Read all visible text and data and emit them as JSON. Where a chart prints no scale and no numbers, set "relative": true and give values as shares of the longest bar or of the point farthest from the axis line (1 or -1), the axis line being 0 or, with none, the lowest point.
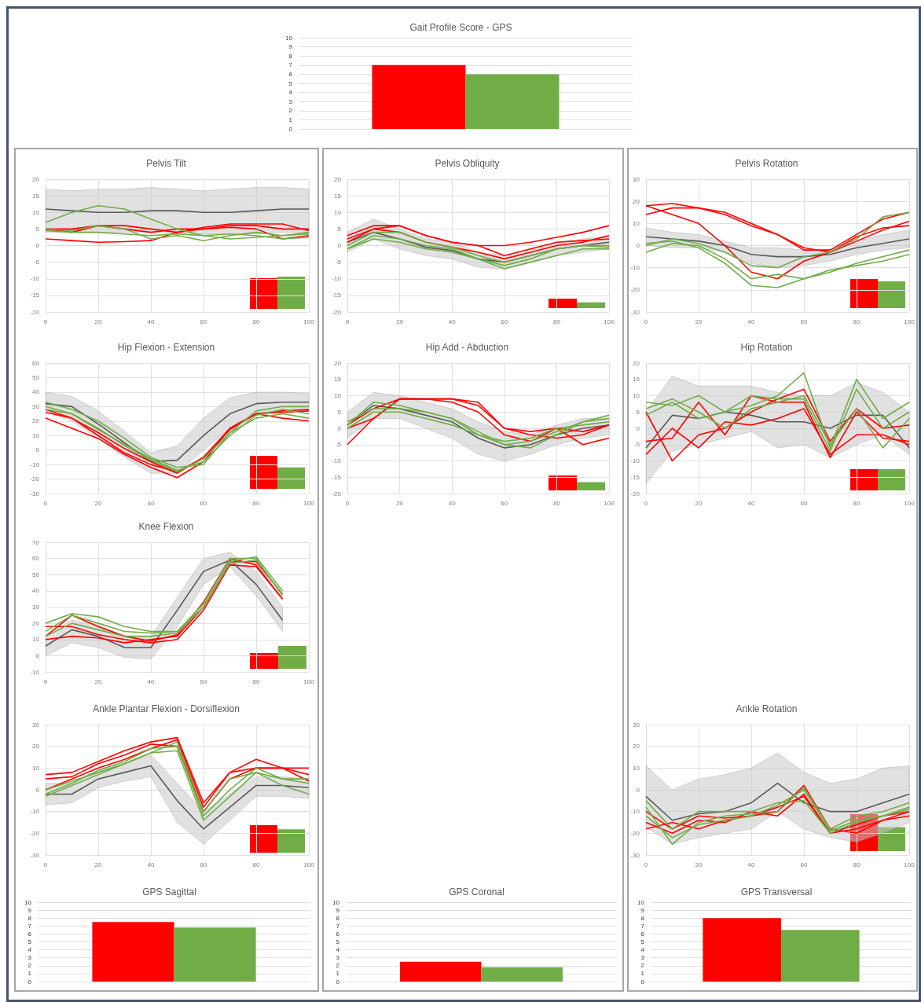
{
  "chart_data": [
    {
      "type": "bar",
      "title": "Gait Profile Score - GPS",
      "categories": [
        null
      ],
      "ylim": [
        0,
        10
      ],
      "yticks": [
        0,
        1,
        2,
        3,
        4,
        5,
        6,
        7,
        8,
        9,
        10
      ],
      "grid": "y",
      "series": [
        {
          "color": "#ff0000",
          "values": [
            7
          ]
        },
        {
          "color": "#70ad47",
          "values": [
            6
          ]
        }
      ]
    },
    {
      "type": "line",
      "title": "Pelvis Tilt",
      "x": [
        0,
        10,
        20,
        30,
        40,
        50,
        60,
        70,
        80,
        90,
        100
      ],
      "xlim": [
        0,
        100
      ],
      "xticks": [
        0,
        20,
        40,
        60,
        80,
        100
      ],
      "ylim": [
        -20,
        20
      ],
      "yticks": [
        -20,
        -15,
        -10,
        -5,
        0,
        5,
        10,
        15,
        20
      ],
      "grid": true,
      "series": [
        {
          "color": "#595959",
          "values": [
            11,
            10.5,
            10,
            10,
            10.5,
            10.5,
            10,
            10,
            10.5,
            11,
            11
          ],
          "lower": [
            4,
            4,
            4,
            4,
            4,
            3.5,
            3.5,
            3.5,
            3.5,
            4,
            4
          ],
          "upper": [
            17,
            16.5,
            17,
            17,
            17.5,
            17,
            16.5,
            17,
            17.5,
            17.5,
            17
          ]
        },
        {
          "color": "#ff0000",
          "values": [
            2,
            1.5,
            1,
            1.2,
            1.5,
            4,
            5,
            6,
            6,
            5,
            5
          ]
        },
        {
          "color": "#ff0000",
          "values": [
            5,
            5,
            6,
            6,
            5,
            4,
            5.5,
            6.5,
            6.5,
            6.5,
            4.5
          ]
        },
        {
          "color": "#ff0000",
          "values": [
            5,
            4,
            6,
            5,
            4,
            5,
            5,
            5.5,
            5,
            2,
            3
          ]
        },
        {
          "color": "#70ad47",
          "values": [
            7,
            10,
            12,
            11,
            8,
            5,
            3,
            2,
            2.5,
            3,
            4
          ]
        },
        {
          "color": "#70ad47",
          "values": [
            5,
            4.5,
            6,
            5,
            2,
            3,
            1.5,
            3,
            4,
            3,
            3.5
          ]
        },
        {
          "color": "#70ad47",
          "values": [
            4.5,
            4,
            4,
            3.5,
            3,
            3.5,
            3,
            3.5,
            3,
            2,
            2.5
          ]
        }
      ]
    },
    {
      "type": "bar",
      "relative": true,
      "categories": [
        null
      ],
      "series": [
        {
          "color": "#ff0000",
          "values": [
            0.95
          ]
        },
        {
          "color": "#70ad47",
          "values": [
            1
          ]
        }
      ]
    },
    {
      "type": "line",
      "title": "Pelvis Obliquity",
      "x": [
        0,
        10,
        20,
        30,
        40,
        50,
        60,
        70,
        80,
        90,
        100
      ],
      "xlim": [
        0,
        100
      ],
      "xticks": [
        0,
        20,
        40,
        60,
        80,
        100
      ],
      "ylim": [
        -20,
        20
      ],
      "yticks": [
        -20,
        -15,
        -10,
        -5,
        0,
        5,
        10,
        15,
        20
      ],
      "grid": true,
      "series": [
        {
          "color": "#595959",
          "values": [
            1,
            4,
            2,
            -0.5,
            -1.5,
            -4,
            -5,
            -3,
            -1,
            0,
            1
          ],
          "lower": [
            -2,
            2,
            -1,
            -3,
            -4,
            -6.5,
            -7,
            -5,
            -3,
            -2,
            -1
          ],
          "upper": [
            4,
            8,
            5,
            2,
            1,
            -2,
            -3,
            -1,
            1,
            2,
            3
          ]
        },
        {
          "color": "#ff0000",
          "values": [
            3,
            6,
            6,
            3,
            1,
            0,
            0,
            1,
            2.5,
            4,
            6
          ]
        },
        {
          "color": "#ff0000",
          "values": [
            2,
            5,
            6,
            3,
            1,
            0,
            -3,
            -1,
            1,
            1.5,
            2
          ]
        },
        {
          "color": "#ff0000",
          "values": [
            1,
            5,
            4,
            1,
            -0.5,
            -2,
            -4,
            -2,
            0,
            1,
            3
          ]
        },
        {
          "color": "#70ad47",
          "values": [
            -1,
            3,
            2,
            0,
            -1,
            -4,
            -6,
            -4,
            -1,
            0,
            0
          ]
        },
        {
          "color": "#70ad47",
          "values": [
            0,
            4,
            4,
            1,
            -0.5,
            -3,
            -5,
            -3,
            -1,
            0,
            -0.5
          ]
        },
        {
          "color": "#70ad47",
          "values": [
            -1,
            2,
            1,
            -1,
            -2,
            -4,
            -7,
            -5,
            -3,
            -1,
            -1
          ]
        }
      ]
    },
    {
      "type": "bar",
      "relative": true,
      "categories": [
        null
      ],
      "series": [
        {
          "color": "#ff0000",
          "values": [
            1
          ]
        },
        {
          "color": "#70ad47",
          "values": [
            0.6
          ]
        }
      ]
    },
    {
      "type": "line",
      "title": "Pelvis Rotation",
      "x": [
        0,
        10,
        20,
        30,
        40,
        50,
        60,
        70,
        80,
        90,
        100
      ],
      "xlim": [
        0,
        100
      ],
      "xticks": [
        0,
        20,
        40,
        60,
        80,
        100
      ],
      "ylim": [
        -30,
        30
      ],
      "yticks": [
        -30,
        -20,
        -10,
        0,
        10,
        20,
        30
      ],
      "grid": true,
      "series": [
        {
          "color": "#595959",
          "values": [
            4,
            3,
            2,
            0,
            -4,
            -5,
            -5,
            -4,
            -1,
            1,
            3
          ],
          "lower": [
            0,
            -1,
            -1,
            -3,
            -8,
            -10,
            -9,
            -7,
            -4,
            -2,
            -1
          ],
          "upper": [
            8,
            6,
            5,
            2,
            -1,
            -1,
            -2,
            -2,
            2,
            5,
            7
          ]
        },
        {
          "color": "#ff0000",
          "values": [
            18,
            19,
            17,
            15,
            10,
            5,
            -2,
            -2,
            5,
            12,
            15
          ]
        },
        {
          "color": "#ff0000",
          "values": [
            14,
            17,
            17,
            14,
            9,
            5,
            -1,
            -3,
            2,
            7,
            11
          ]
        },
        {
          "color": "#ff0000",
          "values": [
            18,
            14,
            10,
            0,
            -12,
            -15,
            -7,
            -3,
            4,
            8,
            9
          ]
        },
        {
          "color": "#70ad47",
          "values": [
            0,
            3,
            1,
            -3,
            -9,
            -10,
            -5,
            -3,
            3,
            13,
            15
          ]
        },
        {
          "color": "#70ad47",
          "values": [
            -3,
            1,
            0,
            -6,
            -15,
            -13,
            -15,
            -12,
            -8,
            -5,
            -2
          ]
        },
        {
          "color": "#70ad47",
          "values": [
            1,
            2,
            -1,
            -8,
            -18,
            -19,
            -15,
            -11,
            -9,
            -7,
            -4
          ]
        }
      ]
    },
    {
      "type": "bar",
      "relative": true,
      "categories": [
        null
      ],
      "series": [
        {
          "color": "#ff0000",
          "values": [
            1
          ]
        },
        {
          "color": "#70ad47",
          "values": [
            0.92
          ]
        }
      ]
    },
    {
      "type": "line",
      "title": "Hip Flexion - Extension",
      "x": [
        0,
        10,
        20,
        30,
        40,
        50,
        60,
        70,
        80,
        90,
        100
      ],
      "xlim": [
        0,
        100
      ],
      "xticks": [
        0,
        20,
        40,
        60,
        80,
        100
      ],
      "ylim": [
        -30,
        60
      ],
      "yticks": [
        -30,
        -20,
        -10,
        0,
        10,
        20,
        30,
        40,
        50,
        60
      ],
      "grid": true,
      "series": [
        {
          "color": "#595959",
          "values": [
            32,
            30,
            18,
            5,
            -8,
            -7,
            10,
            25,
            32,
            33,
            33
          ],
          "lower": [
            27,
            20,
            8,
            -5,
            -16,
            -16,
            0,
            15,
            25,
            27,
            27
          ],
          "upper": [
            40,
            37,
            27,
            13,
            -2,
            3,
            22,
            36,
            40,
            40,
            39
          ]
        },
        {
          "color": "#ff0000",
          "values": [
            22,
            15,
            8,
            -3,
            -12,
            -19,
            -8,
            15,
            25,
            22,
            20
          ]
        },
        {
          "color": "#ff0000",
          "values": [
            26,
            22,
            10,
            -2,
            -10,
            -15,
            -5,
            15,
            25,
            27,
            28
          ]
        },
        {
          "color": "#ff0000",
          "values": [
            28,
            22,
            12,
            1,
            -8,
            -16,
            -5,
            14,
            25,
            26,
            27
          ]
        },
        {
          "color": "#70ad47",
          "values": [
            33,
            28,
            20,
            8,
            -5,
            -12,
            -10,
            12,
            27,
            30,
            30
          ]
        },
        {
          "color": "#70ad47",
          "values": [
            30,
            25,
            14,
            4,
            -6,
            -14,
            -8,
            10,
            24,
            28,
            25
          ]
        },
        {
          "color": "#70ad47",
          "values": [
            28,
            25,
            15,
            3,
            -7,
            -15,
            -6,
            12,
            22,
            25,
            22
          ]
        }
      ]
    },
    {
      "type": "bar",
      "relative": true,
      "categories": [
        null
      ],
      "series": [
        {
          "color": "#ff0000",
          "values": [
            1
          ]
        },
        {
          "color": "#70ad47",
          "values": [
            0.65
          ]
        }
      ]
    },
    {
      "type": "line",
      "title": "Hip Add - Abduction",
      "x": [
        0,
        10,
        20,
        30,
        40,
        50,
        60,
        70,
        80,
        90,
        100
      ],
      "xlim": [
        0,
        100
      ],
      "xticks": [
        0,
        20,
        40,
        60,
        80,
        100
      ],
      "ylim": [
        -20,
        20
      ],
      "yticks": [
        -20,
        -15,
        -10,
        -5,
        0,
        5,
        10,
        15,
        20
      ],
      "grid": true,
      "series": [
        {
          "color": "#595959",
          "values": [
            1,
            7,
            6,
            4,
            2,
            -3,
            -6,
            -5,
            -2,
            0,
            1
          ],
          "lower": [
            -3,
            3,
            3,
            0,
            -3,
            -8,
            -10,
            -8,
            -5,
            -3,
            -2
          ],
          "upper": [
            5,
            11,
            10,
            8,
            6,
            2,
            -1,
            -2,
            1,
            3,
            3
          ]
        },
        {
          "color": "#ff0000",
          "values": [
            -5,
            3,
            9,
            9,
            9,
            7,
            0,
            -2,
            -3,
            -2,
            1
          ]
        },
        {
          "color": "#ff0000",
          "values": [
            1,
            6,
            9,
            9,
            9,
            8,
            0,
            -1,
            0,
            -1,
            1
          ]
        },
        {
          "color": "#ff0000",
          "values": [
            0,
            3,
            9,
            9,
            8,
            5,
            -2,
            -4,
            0,
            -5,
            -3
          ]
        },
        {
          "color": "#70ad47",
          "values": [
            1,
            8,
            7,
            5,
            3,
            -1,
            -5,
            -4,
            -1,
            2,
            3
          ]
        },
        {
          "color": "#70ad47",
          "values": [
            2,
            6,
            6,
            5,
            3,
            -2,
            -4,
            -3,
            0,
            1,
            2
          ]
        },
        {
          "color": "#70ad47",
          "values": [
            0,
            5,
            5,
            3,
            1,
            -2,
            -5,
            -6,
            -2,
            2,
            4
          ]
        }
      ]
    },
    {
      "type": "bar",
      "relative": true,
      "categories": [
        null
      ],
      "series": [
        {
          "color": "#ff0000",
          "values": [
            1
          ]
        },
        {
          "color": "#70ad47",
          "values": [
            0.55
          ]
        }
      ]
    },
    {
      "type": "line",
      "title": "Hip Rotation",
      "x": [
        0,
        10,
        20,
        30,
        40,
        50,
        60,
        70,
        80,
        90,
        100
      ],
      "xlim": [
        0,
        100
      ],
      "xticks": [
        0,
        20,
        40,
        60,
        80,
        100
      ],
      "ylim": [
        -20,
        20
      ],
      "yticks": [
        -20,
        -15,
        -10,
        -5,
        0,
        5,
        10,
        15,
        20
      ],
      "grid": true,
      "series": [
        {
          "color": "#595959",
          "values": [
            -6,
            4,
            3,
            5,
            4,
            2,
            2,
            0,
            4,
            4,
            -6
          ],
          "lower": [
            -17,
            -7,
            -5,
            -3,
            -1,
            -6,
            -5,
            -9,
            -5,
            -2,
            -8
          ],
          "upper": [
            5,
            16,
            13,
            13,
            13,
            11,
            10,
            10,
            14,
            11,
            5
          ]
        },
        {
          "color": "#ff0000",
          "values": [
            5,
            -10,
            -2,
            0,
            5,
            9,
            12,
            -4,
            6,
            0,
            1
          ]
        },
        {
          "color": "#ff0000",
          "values": [
            -4,
            -3,
            8,
            -2,
            10,
            8,
            8,
            -9,
            5,
            -3,
            -4
          ]
        },
        {
          "color": "#ff0000",
          "values": [
            -8,
            0,
            -6,
            2,
            1,
            3,
            6,
            -8,
            -2,
            -2,
            -5
          ]
        },
        {
          "color": "#70ad47",
          "values": [
            8,
            7,
            10,
            5,
            7,
            10,
            17,
            -6,
            15,
            3,
            8
          ]
        },
        {
          "color": "#70ad47",
          "values": [
            4,
            8,
            3,
            5,
            10,
            9,
            9,
            -7,
            12,
            0,
            5
          ]
        },
        {
          "color": "#70ad47",
          "values": [
            6,
            9,
            5,
            0,
            6,
            8,
            10,
            -5,
            6,
            -6,
            3
          ]
        }
      ]
    },
    {
      "type": "bar",
      "relative": true,
      "categories": [
        null
      ],
      "series": [
        {
          "color": "#ff0000",
          "values": [
            1
          ]
        },
        {
          "color": "#70ad47",
          "values": [
            1
          ]
        }
      ]
    },
    {
      "type": "line",
      "title": "Knee Flexion",
      "x": [
        0,
        10,
        20,
        30,
        40,
        50,
        60,
        70,
        80,
        90
      ],
      "xlim": [
        0,
        100
      ],
      "xticks": [
        0,
        20,
        40,
        60,
        80,
        100
      ],
      "ylim": [
        -10,
        70
      ],
      "yticks": [
        -10,
        0,
        10,
        20,
        30,
        40,
        50,
        60,
        70
      ],
      "grid": true,
      "series": [
        {
          "color": "#595959",
          "values": [
            6,
            16,
            12,
            5,
            5,
            28,
            52,
            59,
            44,
            22
          ],
          "lower": [
            0,
            8,
            5,
            -1,
            -2,
            18,
            44,
            55,
            37,
            15
          ],
          "upper": [
            12,
            22,
            19,
            12,
            12,
            36,
            60,
            64,
            52,
            30
          ]
        },
        {
          "color": "#ff0000",
          "values": [
            18,
            18,
            13,
            10,
            8,
            10,
            28,
            56,
            55,
            35
          ]
        },
        {
          "color": "#ff0000",
          "values": [
            10,
            12,
            11,
            8,
            10,
            12,
            30,
            58,
            58,
            38
          ]
        },
        {
          "color": "#ff0000",
          "values": [
            12,
            25,
            18,
            12,
            9,
            13,
            33,
            60,
            56,
            35
          ]
        },
        {
          "color": "#70ad47",
          "values": [
            20,
            26,
            24,
            18,
            15,
            15,
            30,
            58,
            61,
            40
          ]
        },
        {
          "color": "#70ad47",
          "values": [
            15,
            25,
            20,
            15,
            14,
            15,
            32,
            60,
            60,
            37
          ]
        },
        {
          "color": "#70ad47",
          "values": [
            12,
            20,
            16,
            12,
            12,
            14,
            30,
            57,
            59,
            38
          ]
        }
      ]
    },
    {
      "type": "bar",
      "relative": true,
      "categories": [
        null
      ],
      "series": [
        {
          "color": "#ff0000",
          "values": [
            0.69
          ]
        },
        {
          "color": "#70ad47",
          "values": [
            1
          ]
        }
      ]
    },
    {
      "type": "line",
      "title": "Ankle Plantar Flexion - Dorsiflexion",
      "x": [
        0,
        10,
        20,
        30,
        40,
        50,
        60,
        70,
        80,
        90,
        100
      ],
      "xlim": [
        0,
        100
      ],
      "xticks": [
        0,
        20,
        40,
        60,
        80,
        100
      ],
      "ylim": [
        -30,
        30
      ],
      "yticks": [
        -30,
        -20,
        -10,
        0,
        10,
        20,
        30
      ],
      "grid": true,
      "series": [
        {
          "color": "#595959",
          "values": [
            -2,
            -2,
            5,
            8,
            11,
            -5,
            -18,
            -8,
            2,
            2,
            1
          ],
          "lower": [
            -7,
            -6,
            1,
            4,
            6,
            -15,
            -25,
            -14,
            -3,
            -3,
            -4
          ],
          "upper": [
            3,
            3,
            9,
            12,
            16,
            3,
            -10,
            -2,
            6,
            6,
            5
          ]
        },
        {
          "color": "#ff0000",
          "values": [
            7,
            8,
            13,
            18,
            22,
            24,
            -6,
            8,
            14,
            10,
            10
          ]
        },
        {
          "color": "#ff0000",
          "values": [
            5,
            6,
            12,
            16,
            21,
            20,
            -10,
            5,
            10,
            10,
            7
          ]
        },
        {
          "color": "#ff0000",
          "values": [
            0,
            5,
            10,
            14,
            19,
            23,
            -8,
            8,
            10,
            10,
            4
          ]
        },
        {
          "color": "#70ad47",
          "values": [
            -2,
            3,
            9,
            13,
            19,
            20,
            -12,
            0,
            10,
            5,
            3
          ]
        },
        {
          "color": "#70ad47",
          "values": [
            -3,
            2,
            7,
            12,
            17,
            18,
            -14,
            -3,
            8,
            2,
            -2
          ]
        },
        {
          "color": "#70ad47",
          "values": [
            0,
            4,
            8,
            12,
            17,
            22,
            -10,
            5,
            8,
            5,
            5
          ]
        }
      ]
    },
    {
      "type": "bar",
      "relative": true,
      "categories": [
        null
      ],
      "series": [
        {
          "color": "#ff0000",
          "values": [
            1
          ]
        },
        {
          "color": "#70ad47",
          "values": [
            0.85
          ]
        }
      ]
    },
    {
      "type": "line",
      "title": "Ankle Rotation",
      "x": [
        0,
        10,
        20,
        30,
        40,
        50,
        60,
        70,
        80,
        90,
        100
      ],
      "xlim": [
        0,
        100
      ],
      "xticks": [
        0,
        20,
        40,
        60,
        80,
        100
      ],
      "ylim": [
        -30,
        30
      ],
      "yticks": [
        -30,
        -20,
        -10,
        0,
        10,
        20,
        30
      ],
      "grid": true,
      "series": [
        {
          "color": "#595959",
          "values": [
            -3,
            -14,
            -11,
            -10,
            -6,
            3,
            -6,
            -10,
            -10,
            -6,
            -2
          ],
          "lower": [
            -17,
            -25,
            -22,
            -20,
            -18,
            -10,
            -18,
            -22,
            -24,
            -20,
            -15
          ],
          "upper": [
            11,
            0,
            5,
            7,
            10,
            17,
            8,
            3,
            5,
            10,
            11
          ]
        },
        {
          "color": "#ff0000",
          "values": [
            -18,
            -15,
            -18,
            -14,
            -12,
            -10,
            2,
            -18,
            -20,
            -14,
            -10
          ]
        },
        {
          "color": "#ff0000",
          "values": [
            -10,
            -18,
            -12,
            -13,
            -12,
            -8,
            -3,
            -20,
            -16,
            -12,
            -10
          ]
        },
        {
          "color": "#ff0000",
          "values": [
            -15,
            -20,
            -14,
            -15,
            -10,
            -12,
            -2,
            -20,
            -18,
            -14,
            -12
          ]
        },
        {
          "color": "#70ad47",
          "values": [
            -5,
            -18,
            -10,
            -10,
            -10,
            -6,
            -5,
            -20,
            -15,
            -12,
            -8
          ]
        },
        {
          "color": "#70ad47",
          "values": [
            -8,
            -25,
            -15,
            -12,
            -11,
            -10,
            1,
            -18,
            -12,
            -10,
            -6
          ]
        },
        {
          "color": "#70ad47",
          "values": [
            -12,
            -22,
            -16,
            -14,
            -12,
            -7,
            0,
            -19,
            -14,
            -12,
            -9
          ]
        }
      ]
    },
    {
      "type": "bar",
      "relative": true,
      "categories": [
        null
      ],
      "series": [
        {
          "color": "#ff0000",
          "values": [
            1
          ]
        },
        {
          "color": "#70ad47",
          "values": [
            0.65
          ]
        }
      ]
    },
    {
      "type": "bar",
      "title": "GPS Sagittal",
      "categories": [
        null
      ],
      "ylim": [
        0,
        10
      ],
      "yticks": [
        0,
        1,
        2,
        3,
        4,
        5,
        6,
        7,
        8,
        9,
        10
      ],
      "grid": "y",
      "series": [
        {
          "color": "#ff0000",
          "values": [
            7.5
          ]
        },
        {
          "color": "#70ad47",
          "values": [
            6.8
          ]
        }
      ]
    },
    {
      "type": "bar",
      "title": "GPS Coronal",
      "categories": [
        null
      ],
      "ylim": [
        0,
        10
      ],
      "yticks": [
        0,
        1,
        2,
        3,
        4,
        5,
        6,
        7,
        8,
        9,
        10
      ],
      "grid": "y",
      "series": [
        {
          "color": "#ff0000",
          "values": [
            2.5
          ]
        },
        {
          "color": "#70ad47",
          "values": [
            1.8
          ]
        }
      ]
    },
    {
      "type": "bar",
      "title": "GPS Transversal",
      "categories": [
        null
      ],
      "ylim": [
        0,
        10
      ],
      "yticks": [
        0,
        1,
        2,
        3,
        4,
        5,
        6,
        7,
        8,
        9,
        10
      ],
      "grid": "y",
      "series": [
        {
          "color": "#ff0000",
          "values": [
            8
          ]
        },
        {
          "color": "#70ad47",
          "values": [
            6.5
          ]
        }
      ]
    }
  ]
}
